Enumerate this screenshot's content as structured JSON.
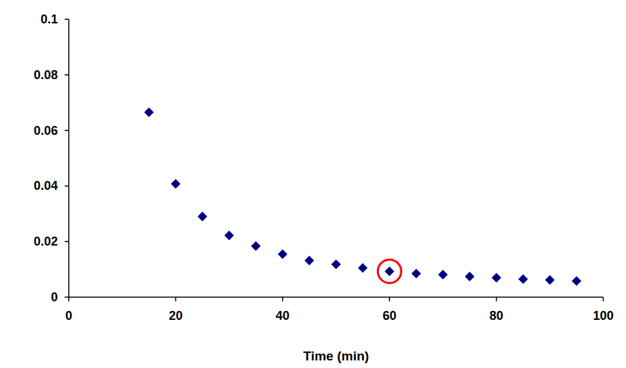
{
  "chart_data": {
    "type": "scatter",
    "x_label": "Time (min)",
    "x": [
      15,
      20,
      25,
      30,
      35,
      40,
      45,
      50,
      55,
      60,
      65,
      70,
      75,
      80,
      85,
      90,
      95
    ],
    "values": [
      0.0665,
      0.0408,
      0.029,
      0.0222,
      0.0184,
      0.0155,
      0.0132,
      0.0118,
      0.0105,
      0.0093,
      0.0085,
      0.0081,
      0.0074,
      0.007,
      0.0065,
      0.0062,
      0.0058
    ],
    "color": "#000080",
    "marker": "diamond",
    "highlight_x": 60,
    "xlim": [
      0,
      100
    ],
    "xticks": [
      0,
      20,
      40,
      60,
      80,
      100
    ],
    "ylim": [
      0,
      0.1
    ],
    "yticks": [
      0,
      0.02,
      0.04,
      0.06,
      0.08,
      0.1
    ],
    "grid": false
  }
}
